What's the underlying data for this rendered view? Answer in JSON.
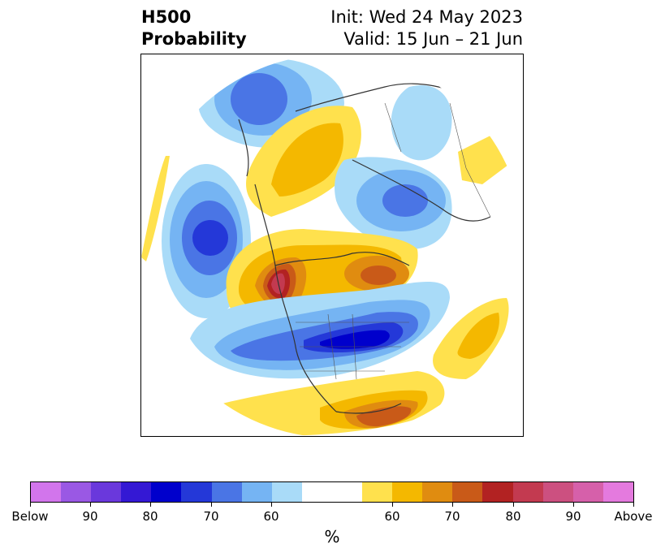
{
  "title": {
    "left_line1": "H500",
    "left_line2": "Probability",
    "right_line1": "Init: Wed 24 May 2023",
    "right_line2": "Valid: 15 Jun – 21 Jun"
  },
  "map": {
    "projection": "polar stereographic, North Pole",
    "below_colors": [
      "#a9dbf8",
      "#75b4f3",
      "#4a75e5",
      "#2438d8",
      "#0000cc",
      "#3418d4",
      "#6a38dc",
      "#9a58e4",
      "#d275ec"
    ],
    "above_colors": [
      "#ffe14d",
      "#f4b800",
      "#e08c10",
      "#c95a18",
      "#b22222",
      "#c33a50",
      "#cc5080",
      "#d660aa",
      "#e47ade"
    ]
  },
  "colorbar": {
    "segments": [
      "#d275ec",
      "#9a58e4",
      "#6a38dc",
      "#3418d4",
      "#0000cc",
      "#2438d8",
      "#4a75e5",
      "#75b4f3",
      "#a9dbf8",
      "#ffffff",
      "#ffe14d",
      "#f4b800",
      "#e08c10",
      "#c95a18",
      "#b22222",
      "#c33a50",
      "#cc5080",
      "#d660aa",
      "#e47ade"
    ],
    "ticks": [
      "Below",
      "90",
      "80",
      "70",
      "60",
      "60",
      "70",
      "80",
      "90",
      "Above"
    ],
    "unit_label": "%"
  }
}
